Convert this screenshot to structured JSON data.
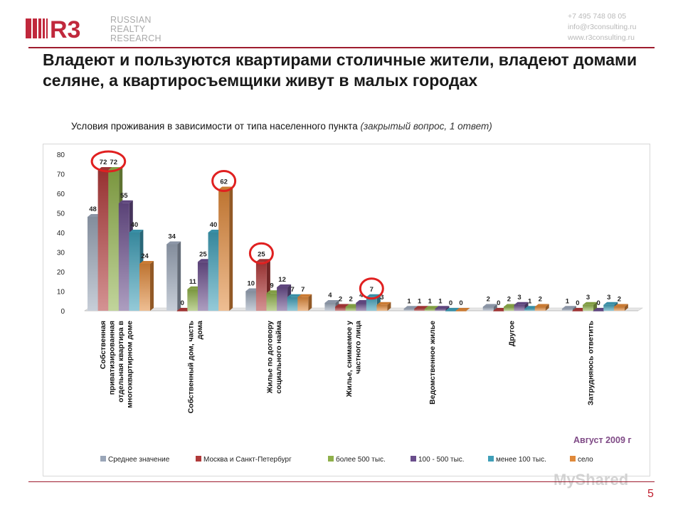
{
  "logo": {
    "mark": "R3",
    "lines": [
      "RUSSIAN",
      "REALTY",
      "RESEARCH"
    ]
  },
  "contacts": [
    "+7 495 748 08 05",
    "info@r3consulting.ru",
    "www.r3consulting.ru"
  ],
  "title": "Владеют и пользуются квартирами столичные жители, владеют домами селяне, а квартиросъемщики живут в малых городах",
  "subtitle": "Условия проживания  в зависимости  от типа населенного  пункта",
  "subtitle_note": "(закрытый вопрос, 1 ответ)",
  "period": "Август 2009 г",
  "page_number": "5",
  "watermark": "MyShared",
  "colors": {
    "accent": "#9e1c2e",
    "circle": "#e02020"
  },
  "chart_data": {
    "type": "bar",
    "ylim": [
      0,
      80
    ],
    "yticks": [
      0,
      10,
      20,
      30,
      40,
      50,
      60,
      70,
      80
    ],
    "grid": false,
    "legend_position": "bottom",
    "categories": [
      "Собственная приватизированная отдельная квартира в многоквартирном доме",
      "Собственный дом, часть дома",
      "Жилье по договору социального найма",
      "Жилье, снимаемое у частного лица",
      "Ведомственное жилье",
      "Другое",
      "Затрудняюсь ответить"
    ],
    "category_lines": [
      [
        "Собственная",
        "приватизированная",
        "отдельная квартира в",
        "многоквартирном доме"
      ],
      [
        "Собственный дом, часть",
        "дома"
      ],
      [
        "Жилье по договору",
        "социального найма"
      ],
      [
        "Жилье, снимаемое у",
        "частного лица"
      ],
      [
        "Ведомственное жилье"
      ],
      [
        "Другое"
      ],
      [
        "Затрудняюсь ответить"
      ]
    ],
    "series": [
      {
        "name": "Среднее значение",
        "color": "#9aa6b8",
        "values": [
          48,
          34,
          10,
          4,
          1,
          2,
          1
        ]
      },
      {
        "name": "Москва и Санкт-Петербург",
        "color": "#b03a3a",
        "values": [
          72,
          0,
          25,
          2,
          1,
          0,
          0
        ]
      },
      {
        "name": "более 500 тыс.",
        "color": "#8fb04a",
        "values": [
          72,
          11,
          9,
          2,
          1,
          2,
          3
        ]
      },
      {
        "name": "100 - 500 тыс.",
        "color": "#6a4e8c",
        "values": [
          55,
          25,
          12,
          4,
          1,
          3,
          0
        ]
      },
      {
        "name": "менее 100 тыс.",
        "color": "#3f9fb8",
        "values": [
          40,
          40,
          7,
          7,
          0,
          1,
          3
        ]
      },
      {
        "name": "село",
        "color": "#e0893a",
        "values": [
          24,
          62,
          7,
          3,
          0,
          2,
          2
        ]
      }
    ],
    "highlighted": [
      {
        "category": 0,
        "series": [
          1,
          2
        ]
      },
      {
        "category": 1,
        "series": [
          5
        ]
      },
      {
        "category": 2,
        "series": [
          1
        ]
      },
      {
        "category": 3,
        "series": [
          4
        ]
      }
    ]
  }
}
